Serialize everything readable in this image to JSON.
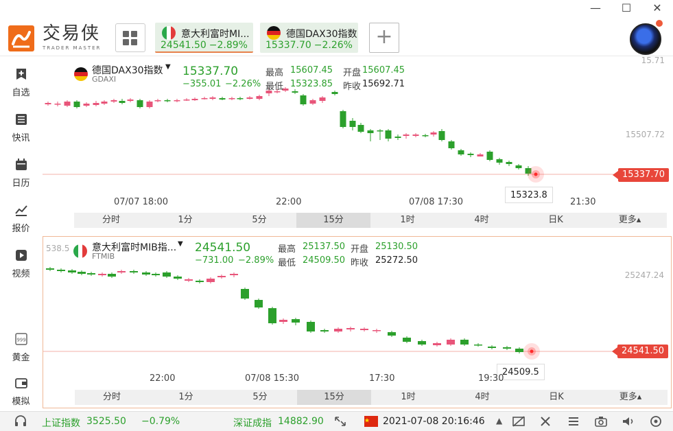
{
  "header": {
    "brand_cn": "交易侠",
    "brand_en": "TRADER MASTER",
    "tabs": [
      {
        "name": "意大利富时MI...",
        "price": "24541.50",
        "pct": "−2.89%",
        "flag": "it"
      },
      {
        "name": "德国DAX30指数",
        "price": "15337.70",
        "pct": "−2.26%",
        "flag": "de"
      }
    ],
    "add_label": "+",
    "window": {
      "min": "—",
      "max": "☐",
      "close": "✕"
    }
  },
  "sidebar": {
    "items": [
      {
        "label": "自选",
        "icon": "bookmark-plus-icon"
      },
      {
        "label": "快讯",
        "icon": "news-list-icon"
      },
      {
        "label": "日历",
        "icon": "calendar-icon"
      },
      {
        "label": "报价",
        "icon": "chart-line-icon"
      },
      {
        "label": "视频",
        "icon": "video-play-icon"
      },
      {
        "label": "黄金",
        "icon": "gold-bar-icon"
      },
      {
        "label": "模拟",
        "icon": "wallet-icon"
      }
    ]
  },
  "chart_top": {
    "name": "德国DAX30指数",
    "code": "GDAXI",
    "price": "15337.70",
    "change": "−355.01",
    "change_pct": "−2.26%",
    "high_label": "最高",
    "high": "15607.45",
    "open_label": "开盘",
    "open": "15607.45",
    "low_label": "最低",
    "low": "15323.85",
    "prev_label": "昨收",
    "prev": "15692.71",
    "y_labels": {
      "top": "15.71",
      "mid": "15507.72"
    },
    "last_tag": "15337.70",
    "low_marker": "15323.8",
    "x_labels": [
      "07/07 18:00",
      "22:00",
      "07/08 17:30",
      "21:30"
    ],
    "periods": [
      "分时",
      "1分",
      "5分",
      "15分",
      "1时",
      "4时",
      "日K",
      "更多▴"
    ],
    "active_period": "15分"
  },
  "chart_bottom": {
    "name": "意大利富时MIB指...",
    "code": "FTMIB",
    "price": "24541.50",
    "change": "−731.00",
    "change_pct": "−2.89%",
    "high_label": "最高",
    "high": "25137.50",
    "open_label": "开盘",
    "open": "25130.50",
    "low_label": "最低",
    "low": "24509.50",
    "prev_label": "昨收",
    "prev": "25272.50",
    "y_labels": {
      "top": "538.5",
      "mid": "25247.24"
    },
    "last_tag": "24541.50",
    "low_marker": "24509.5",
    "x_labels": [
      "22:00",
      "07/08 15:30",
      "17:30",
      "19:30"
    ],
    "periods": [
      "分时",
      "1分",
      "5分",
      "15分",
      "1时",
      "4时",
      "日K",
      "更多▴"
    ],
    "active_period": "15分"
  },
  "status": {
    "idx1_name": "上证指数",
    "idx1_value": "3525.50",
    "idx1_pct": "−0.79%",
    "idx2_name": "深证成指",
    "idx2_value": "14882.90",
    "datetime": "2021-07-08 20:16:46"
  },
  "colors": {
    "up": "#e8557a",
    "down": "#2ca02c",
    "accent": "#ef6c1a",
    "last_price": "#e8463a"
  }
}
